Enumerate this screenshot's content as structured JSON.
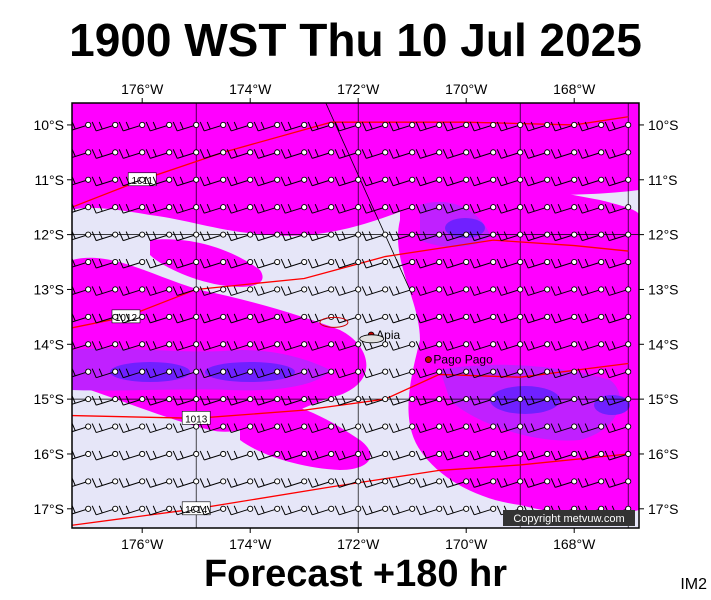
{
  "title": "1900 WST Thu 10 Jul 2025",
  "subtitle": "Forecast +180 hr",
  "model_label": "IM2",
  "copyright": "Copyright metvuw.com",
  "colors": {
    "background": "#e6e6f8",
    "precip_light": "#ff00ff",
    "precip_mid": "#c020ff",
    "precip_heavy": "#7020ff",
    "isobar": "#ff0000",
    "wind": "#000000"
  },
  "axes": {
    "lon_labels_top": [
      "176°W",
      "174°W",
      "172°W",
      "170°W",
      "168°W"
    ],
    "lon_labels_bottom": [
      "176°W",
      "174°W",
      "172°W",
      "170°W",
      "168°W"
    ],
    "lat_labels_left": [
      "10°S",
      "11°S",
      "12°S",
      "13°S",
      "14°S",
      "15°S",
      "16°S",
      "17°S"
    ],
    "lat_labels_right": [
      "10°S",
      "11°S",
      "12°S",
      "13°S",
      "14°S",
      "15°S",
      "16°S",
      "17°S"
    ]
  },
  "places": [
    {
      "name": "Apia",
      "lon": -171.76,
      "lat": -13.83
    },
    {
      "name": "Pago Pago",
      "lon": -170.7,
      "lat": -14.28
    }
  ],
  "isobars": [
    {
      "label": "1011",
      "points": [
        [
          -177.3,
          -11.5
        ],
        [
          -176,
          -11.0
        ],
        [
          -174.5,
          -10.5
        ],
        [
          -172.5,
          -9.95
        ],
        [
          -170,
          -9.95
        ],
        [
          -168,
          -10.0
        ],
        [
          -167,
          -9.85
        ]
      ]
    },
    {
      "label": "1012",
      "points": [
        [
          -177.3,
          -13.7
        ],
        [
          -176.3,
          -13.5
        ],
        [
          -175,
          -13.0
        ],
        [
          -173,
          -12.8
        ],
        [
          -171.5,
          -12.4
        ],
        [
          -169.5,
          -12.1
        ],
        [
          -168,
          -12.2
        ],
        [
          -167,
          -12.3
        ]
      ]
    },
    {
      "label": "1013",
      "points": [
        [
          -177.3,
          -15.3
        ],
        [
          -175,
          -15.35
        ],
        [
          -173,
          -15.2
        ],
        [
          -171.5,
          -15.0
        ],
        [
          -170.5,
          -14.55
        ],
        [
          -169,
          -14.6
        ],
        [
          -167,
          -14.35
        ]
      ]
    },
    {
      "label": "1014",
      "points": [
        [
          -177.3,
          -17.3
        ],
        [
          -175,
          -17.0
        ],
        [
          -172.5,
          -16.6
        ],
        [
          -170.5,
          -16.3
        ],
        [
          -169,
          -16.2
        ],
        [
          -167,
          -16.0
        ]
      ]
    }
  ]
}
